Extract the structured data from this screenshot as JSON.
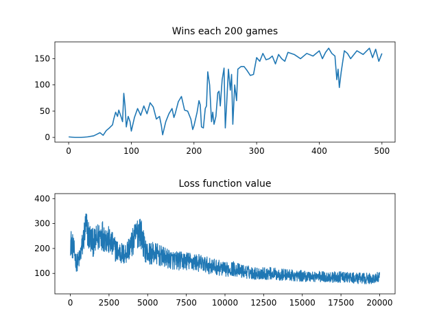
{
  "chart_data": [
    {
      "type": "line",
      "title": "Wins each 200 games",
      "xlabel": "",
      "ylabel": "",
      "xlim": [
        -22,
        521
      ],
      "ylim": [
        -9,
        182
      ],
      "xticks": [
        0,
        100,
        200,
        300,
        400,
        500
      ],
      "yticks": [
        0,
        50,
        100,
        150
      ],
      "grid": false,
      "color": "#1f77b4",
      "series": [
        {
          "x": [
            0,
            10,
            20,
            30,
            40,
            45,
            50,
            55,
            60,
            65,
            70,
            72,
            75,
            78,
            80,
            82,
            84,
            86,
            88,
            90,
            92,
            95,
            98,
            100,
            105,
            110,
            115,
            120,
            125,
            130,
            135,
            140,
            145,
            148,
            150,
            152,
            155,
            160,
            165,
            168,
            170,
            175,
            180,
            185,
            190,
            195,
            198,
            200,
            205,
            208,
            210,
            212,
            215,
            218,
            220,
            222,
            225,
            228,
            230,
            232,
            235,
            238,
            240,
            242,
            245,
            248,
            250,
            252,
            255,
            258,
            260,
            262,
            265,
            268,
            270,
            275,
            280,
            285,
            290,
            295,
            300,
            305,
            310,
            315,
            320,
            325,
            330,
            335,
            340,
            345,
            350,
            360,
            370,
            380,
            390,
            400,
            405,
            410,
            415,
            420,
            425,
            428,
            430,
            432,
            435,
            440,
            445,
            450,
            460,
            470,
            480,
            485,
            490,
            495,
            500
          ],
          "y": [
            1,
            0,
            0,
            1,
            3,
            6,
            9,
            4,
            13,
            18,
            24,
            35,
            48,
            40,
            52,
            45,
            38,
            30,
            84,
            60,
            20,
            40,
            30,
            12,
            38,
            55,
            42,
            60,
            45,
            66,
            58,
            35,
            40,
            22,
            5,
            15,
            30,
            45,
            55,
            38,
            45,
            68,
            78,
            52,
            50,
            35,
            15,
            22,
            48,
            70,
            62,
            20,
            18,
            55,
            60,
            125,
            100,
            30,
            48,
            25,
            40,
            85,
            88,
            60,
            110,
            132,
            18,
            60,
            130,
            90,
            120,
            25,
            100,
            70,
            130,
            135,
            135,
            127,
            118,
            120,
            152,
            145,
            160,
            148,
            150,
            155,
            140,
            158,
            150,
            145,
            162,
            158,
            150,
            160,
            155,
            165,
            150,
            162,
            170,
            160,
            155,
            110,
            130,
            95,
            125,
            165,
            160,
            150,
            165,
            158,
            170,
            152,
            168,
            145,
            160
          ]
        }
      ]
    },
    {
      "type": "line",
      "title": "Loss function value",
      "xlabel": "",
      "ylabel": "",
      "xlim": [
        -1000,
        21000
      ],
      "ylim": [
        18,
        420
      ],
      "xticks": [
        0,
        2500,
        5000,
        7500,
        10000,
        12500,
        15000,
        17500,
        20000
      ],
      "yticks": [
        100,
        200,
        300,
        400
      ],
      "grid": false,
      "color": "#1f77b4",
      "noise_amplitude": 55,
      "series": [
        {
          "x": [
            0,
            200,
            400,
            600,
            800,
            1000,
            1200,
            1500,
            2000,
            2500,
            3000,
            3500,
            4000,
            4300,
            4500,
            4800,
            5000,
            5500,
            6000,
            6500,
            7000,
            7500,
            8000,
            8500,
            9000,
            9500,
            10000,
            10500,
            11000,
            11500,
            12000,
            12500,
            13000,
            13500,
            14000,
            14500,
            15000,
            15500,
            16000,
            16500,
            17000,
            17500,
            18000,
            18500,
            19000,
            19500,
            20000
          ],
          "y": [
            230,
            200,
            140,
            160,
            220,
            290,
            250,
            220,
            260,
            230,
            190,
            175,
            220,
            260,
            280,
            200,
            180,
            180,
            165,
            155,
            150,
            150,
            145,
            140,
            130,
            125,
            115,
            120,
            110,
            105,
            100,
            100,
            100,
            95,
            95,
            90,
            90,
            88,
            88,
            85,
            85,
            85,
            83,
            80,
            80,
            78,
            85
          ]
        }
      ]
    }
  ]
}
